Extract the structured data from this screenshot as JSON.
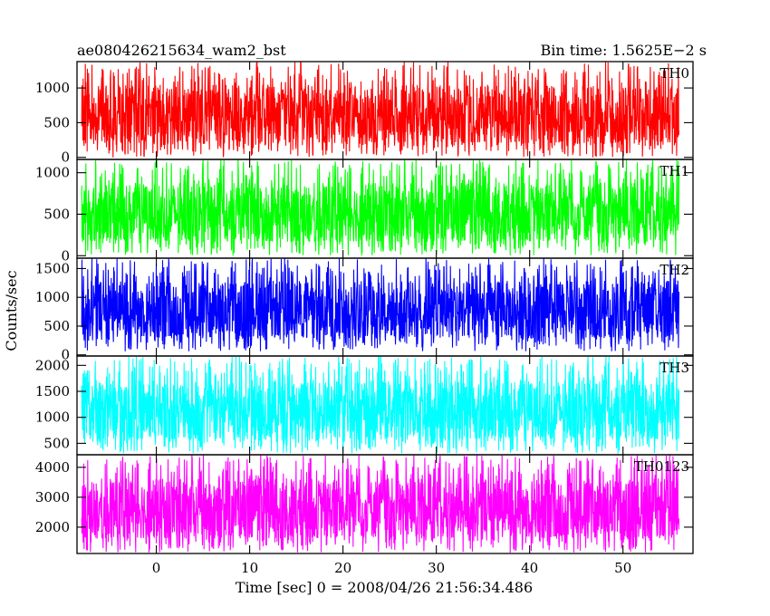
{
  "chart_data": {
    "type": "line",
    "title_left": "ae080426215634_wam2_bst",
    "title_right": "Bin time: 1.5625E−2 s",
    "xlabel": "Time [sec] 0 = 2008/04/26 21:56:34.486",
    "ylabel": "Counts/sec",
    "xlim": [
      -8.5,
      57.5
    ],
    "data_x_range": [
      -8.0,
      56.0
    ],
    "x_ticks": [
      0,
      10,
      20,
      30,
      40,
      50
    ],
    "x_tick_labels": [
      "0",
      "10",
      "20",
      "30",
      "40",
      "50"
    ],
    "grid": false,
    "panels": [
      {
        "name": "TH0",
        "color": "#ff0000",
        "ylim": [
          -30,
          1380
        ],
        "y_ticks": [
          0,
          500,
          1000
        ],
        "y_tick_labels": [
          "0",
          "500",
          "1000"
        ],
        "noise_min": 0,
        "noise_max": 1380
      },
      {
        "name": "TH1",
        "color": "#00ff00",
        "ylim": [
          -30,
          1160
        ],
        "y_ticks": [
          0,
          500,
          1000
        ],
        "y_tick_labels": [
          "0",
          "500",
          "1000"
        ],
        "noise_min": 0,
        "noise_max": 1160
      },
      {
        "name": "TH2",
        "color": "#0000ff",
        "ylim": [
          -20,
          1680
        ],
        "y_ticks": [
          0,
          500,
          1000,
          1500
        ],
        "y_tick_labels": [
          "0",
          "500",
          "1000",
          "1500"
        ],
        "noise_min": 60,
        "noise_max": 1680
      },
      {
        "name": "TH3",
        "color": "#00ffff",
        "ylim": [
          280,
          2180
        ],
        "y_ticks": [
          500,
          1000,
          1500,
          2000
        ],
        "y_tick_labels": [
          "500",
          "1000",
          "1500",
          "2000"
        ],
        "noise_min": 300,
        "noise_max": 2180
      },
      {
        "name": "TH0123",
        "color": "#ff00ff",
        "ylim": [
          1120,
          4420
        ],
        "y_ticks": [
          2000,
          3000,
          4000
        ],
        "y_tick_labels": [
          "2000",
          "3000",
          "4000"
        ],
        "noise_min": 1150,
        "noise_max": 4420
      }
    ]
  }
}
